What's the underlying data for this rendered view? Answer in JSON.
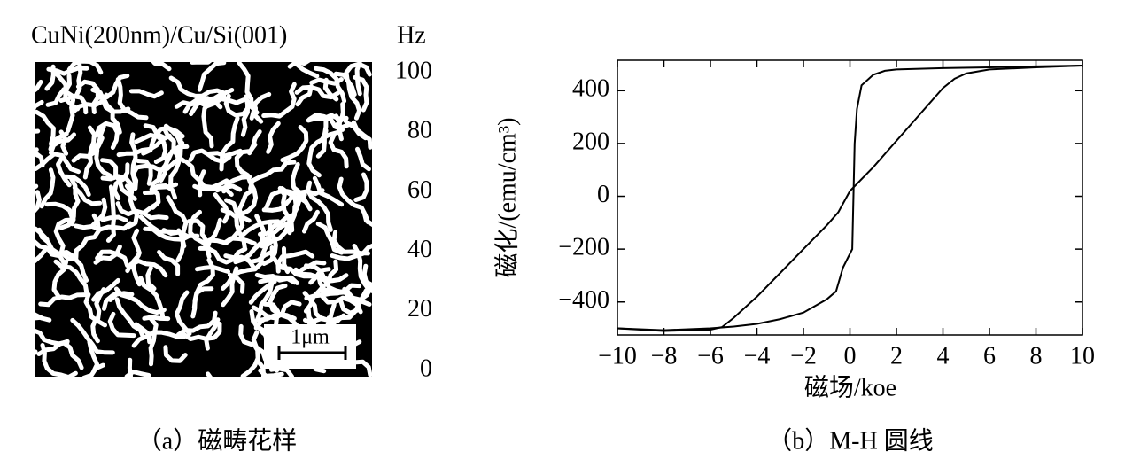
{
  "panel_a": {
    "title": "CuNi(200nm)/Cu/Si(001)",
    "unit": "Hz",
    "scale_ticks": [
      100,
      80,
      60,
      40,
      20,
      0
    ],
    "scale_bar": "1μm",
    "caption": "（a）磁畴花样"
  },
  "chart_data": {
    "type": "line",
    "xlabel": "磁场/koe",
    "ylabel": "磁化/(emu/cm³)",
    "caption": "（b）M-H 圆线",
    "xlim": [
      -10,
      10
    ],
    "ylim": [
      -525,
      515
    ],
    "xticks": [
      {
        "value": -10,
        "label": "−10"
      },
      {
        "value": -8,
        "label": "−8"
      },
      {
        "value": -6,
        "label": "−6"
      },
      {
        "value": -4,
        "label": "−4"
      },
      {
        "value": -2,
        "label": "−2"
      },
      0,
      2,
      4,
      6,
      8,
      10
    ],
    "yticks": [
      {
        "value": -400,
        "label": "−400"
      },
      {
        "value": -200,
        "label": "−200"
      },
      0,
      200,
      400
    ],
    "series": [
      {
        "color": "#000000",
        "x": [
          10,
          8,
          6,
          4,
          2,
          1.5,
          1,
          0.5,
          0.3,
          0.2,
          0.1,
          -0.3,
          -0.5,
          -0.6,
          -1,
          -2,
          -3,
          -4,
          -5,
          -6,
          -8,
          -10
        ],
        "values": [
          495,
          492,
          488,
          485,
          480,
          475,
          460,
          420,
          330,
          200,
          -200,
          -270,
          -330,
          -360,
          -390,
          -440,
          -465,
          -483,
          -493,
          -500,
          -507,
          -500
        ]
      },
      {
        "color": "#000000",
        "x": [
          -10,
          -8,
          -6,
          -5.5,
          -5,
          -4,
          -3,
          -2,
          -1,
          -0.5,
          0,
          1,
          2,
          3,
          4,
          4.5,
          5,
          6,
          8,
          10
        ],
        "values": [
          -500,
          -510,
          -505,
          -495,
          -460,
          -380,
          -290,
          -200,
          -110,
          -60,
          20,
          110,
          210,
          310,
          410,
          445,
          465,
          480,
          488,
          495
        ]
      }
    ]
  }
}
